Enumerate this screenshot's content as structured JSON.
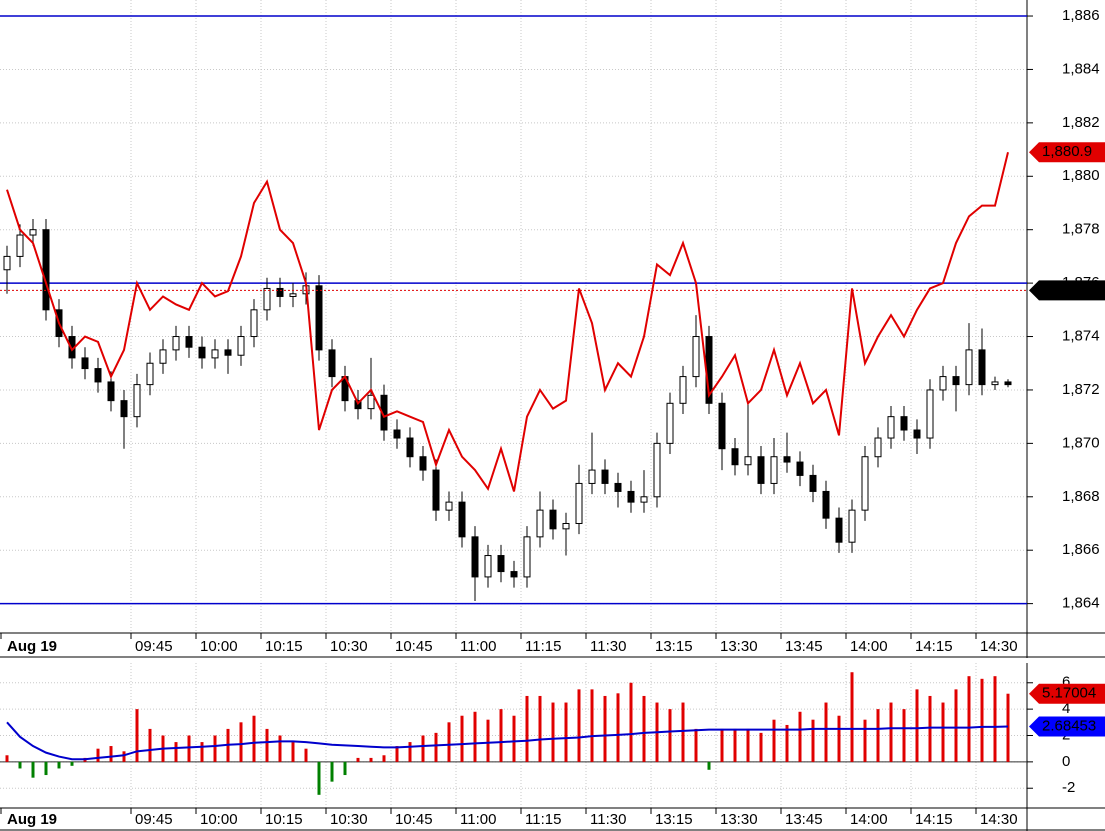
{
  "chart_data": [
    {
      "type": "candlestick",
      "open": [
        1876.5,
        1877.0,
        1877.8,
        1878.0,
        1875.0,
        1874.0,
        1873.2,
        1872.8,
        1872.3,
        1871.6,
        1871.0,
        1872.2,
        1873.0,
        1873.5,
        1874.0,
        1873.6,
        1873.2,
        1873.5,
        1873.3,
        1874.0,
        1875.0,
        1875.8,
        1875.5,
        1875.6,
        1875.9,
        1873.5,
        1872.5,
        1871.6,
        1871.3,
        1871.8,
        1870.5,
        1870.2,
        1869.5,
        1869.0,
        1867.5,
        1867.8,
        1866.5,
        1865.0,
        1865.8,
        1865.2,
        1865.0,
        1866.5,
        1867.5,
        1866.8,
        1867.0,
        1868.5,
        1869.0,
        1868.5,
        1868.2,
        1867.8,
        1868.0,
        1870.0,
        1871.5,
        1872.5,
        1874.0,
        1871.5,
        1869.8,
        1869.2,
        1869.5,
        1868.5,
        1869.5,
        1869.3,
        1868.8,
        1868.2,
        1867.2,
        1866.3,
        1867.5,
        1869.5,
        1870.2,
        1871.0,
        1870.5,
        1870.2,
        1872.0,
        1872.5,
        1872.2,
        1873.5,
        1872.2,
        1872.3
      ],
      "high": [
        1877.4,
        1878.2,
        1878.4,
        1878.4,
        1875.4,
        1874.4,
        1873.6,
        1873.2,
        1872.7,
        1872.0,
        1872.6,
        1873.4,
        1873.9,
        1874.4,
        1874.4,
        1874.0,
        1873.9,
        1873.9,
        1874.4,
        1875.4,
        1876.2,
        1876.2,
        1876.0,
        1876.4,
        1876.3,
        1873.9,
        1872.9,
        1872.0,
        1873.2,
        1872.2,
        1870.9,
        1870.6,
        1869.9,
        1869.4,
        1868.2,
        1868.2,
        1866.9,
        1866.2,
        1866.2,
        1865.6,
        1866.9,
        1868.2,
        1867.9,
        1867.4,
        1869.2,
        1870.4,
        1869.4,
        1868.9,
        1868.6,
        1869.0,
        1870.4,
        1871.9,
        1872.9,
        1874.8,
        1874.4,
        1871.9,
        1870.2,
        1871.6,
        1869.9,
        1870.2,
        1870.4,
        1869.7,
        1869.2,
        1868.6,
        1867.6,
        1867.9,
        1869.9,
        1870.6,
        1871.4,
        1871.4,
        1870.9,
        1872.4,
        1872.9,
        1872.9,
        1874.5,
        1874.3,
        1872.5,
        1872.4
      ],
      "low": [
        1875.6,
        1876.6,
        1877.4,
        1874.6,
        1873.6,
        1872.8,
        1872.4,
        1871.9,
        1871.2,
        1869.8,
        1870.6,
        1871.8,
        1872.6,
        1873.1,
        1873.2,
        1872.8,
        1872.8,
        1872.6,
        1872.9,
        1873.6,
        1874.6,
        1875.1,
        1875.1,
        1875.2,
        1873.1,
        1872.1,
        1871.2,
        1870.9,
        1870.9,
        1870.1,
        1869.8,
        1869.1,
        1868.6,
        1867.1,
        1867.1,
        1866.1,
        1864.1,
        1864.6,
        1864.8,
        1864.6,
        1864.6,
        1866.1,
        1866.4,
        1865.8,
        1866.6,
        1868.1,
        1868.1,
        1867.6,
        1867.4,
        1867.4,
        1867.6,
        1869.6,
        1871.1,
        1872.1,
        1871.1,
        1869.0,
        1868.8,
        1868.8,
        1868.1,
        1868.1,
        1868.9,
        1868.4,
        1867.8,
        1866.8,
        1865.9,
        1865.9,
        1867.1,
        1869.1,
        1869.8,
        1870.1,
        1869.6,
        1869.8,
        1871.6,
        1871.2,
        1871.8,
        1871.8,
        1872.0,
        1872.1
      ],
      "close": [
        1877.0,
        1877.8,
        1878.0,
        1875.0,
        1874.0,
        1873.2,
        1872.8,
        1872.3,
        1871.6,
        1871.0,
        1872.2,
        1873.0,
        1873.5,
        1874.0,
        1873.6,
        1873.2,
        1873.5,
        1873.3,
        1874.0,
        1875.0,
        1875.8,
        1875.5,
        1875.6,
        1875.9,
        1873.5,
        1872.5,
        1871.6,
        1871.3,
        1871.8,
        1870.5,
        1870.2,
        1869.5,
        1869.0,
        1867.5,
        1867.8,
        1866.5,
        1865.0,
        1865.8,
        1865.2,
        1865.0,
        1866.5,
        1867.5,
        1866.8,
        1867.0,
        1868.5,
        1869.0,
        1868.5,
        1868.2,
        1867.8,
        1868.0,
        1870.0,
        1871.5,
        1872.5,
        1874.0,
        1871.5,
        1869.8,
        1869.2,
        1869.5,
        1868.5,
        1869.5,
        1869.3,
        1868.8,
        1868.2,
        1867.2,
        1866.3,
        1867.5,
        1869.5,
        1870.2,
        1871.0,
        1870.5,
        1870.2,
        1872.0,
        1872.5,
        1872.2,
        1873.5,
        1872.2,
        1872.3,
        1872.2
      ],
      "series": [
        {
          "color": "#e00000",
          "values": [
            1879.5,
            1878.0,
            1877.5,
            1876.0,
            1874.5,
            1873.5,
            1874.0,
            1873.8,
            1872.5,
            1873.5,
            1876.0,
            1875.0,
            1875.5,
            1875.2,
            1875.0,
            1876.0,
            1875.5,
            1875.7,
            1877.0,
            1879.0,
            1879.8,
            1878.0,
            1877.5,
            1876.0,
            1870.5,
            1872.0,
            1872.5,
            1871.5,
            1872.0,
            1871.0,
            1871.2,
            1871.0,
            1870.8,
            1869.2,
            1870.5,
            1869.5,
            1869.0,
            1868.3,
            1869.8,
            1868.2,
            1871.0,
            1872.0,
            1871.3,
            1871.6,
            1875.8,
            1874.5,
            1872.0,
            1873.0,
            1872.5,
            1874.0,
            1876.7,
            1876.3,
            1877.5,
            1876.0,
            1871.8,
            1872.5,
            1873.3,
            1871.5,
            1872.0,
            1873.5,
            1871.8,
            1873.0,
            1871.5,
            1872.0,
            1870.3,
            1875.8,
            1873.0,
            1874.0,
            1874.8,
            1874.0,
            1875.0,
            1875.8,
            1876.0,
            1877.5,
            1878.5,
            1878.9,
            1878.9,
            1880.9
          ]
        }
      ],
      "hlines": [
        {
          "value": 1886,
          "color": "#0000cc"
        },
        {
          "value": 1876,
          "color": "#0000cc"
        },
        {
          "value": 1864,
          "color": "#0000cc"
        }
      ],
      "markers": [
        {
          "value": 1880.9,
          "label": "1,880.9",
          "color": "#e00000"
        },
        {
          "value": 1875.73,
          "label": "1,875.73",
          "color": "#000000",
          "line": "dashed"
        }
      ],
      "ylim": [
        1862.9,
        1886.6
      ],
      "yticks": [
        {
          "value": 1864,
          "label": "1,864"
        },
        {
          "value": 1866,
          "label": "1,866"
        },
        {
          "value": 1868,
          "label": "1,868"
        },
        {
          "value": 1870,
          "label": "1,870"
        },
        {
          "value": 1872,
          "label": "1,872"
        },
        {
          "value": 1874,
          "label": "1,874"
        },
        {
          "value": 1876,
          "label": "1,876"
        },
        {
          "value": 1878,
          "label": "1,878"
        },
        {
          "value": 1880,
          "label": "1,880"
        },
        {
          "value": 1882,
          "label": "1,882"
        },
        {
          "value": 1884,
          "label": "1,884"
        },
        {
          "value": 1886,
          "label": "1,886"
        }
      ],
      "xticks": [
        {
          "value": 0,
          "label": "Aug 19"
        },
        {
          "value": 10,
          "label": "09:45"
        },
        {
          "value": 15,
          "label": "10:00"
        },
        {
          "value": 20,
          "label": "10:15"
        },
        {
          "value": 25,
          "label": "10:30"
        },
        {
          "value": 30,
          "label": "10:45"
        },
        {
          "value": 35,
          "label": "11:00"
        },
        {
          "value": 40,
          "label": "11:15"
        },
        {
          "value": 45,
          "label": "11:30"
        },
        {
          "value": 50,
          "label": "13:15"
        },
        {
          "value": 55,
          "label": "13:30"
        },
        {
          "value": 60,
          "label": "13:45"
        },
        {
          "value": 65,
          "label": "14:00"
        },
        {
          "value": 70,
          "label": "14:15"
        },
        {
          "value": 75,
          "label": "14:30"
        }
      ],
      "grid": true
    },
    {
      "type": "bar",
      "values": [
        0.5,
        -0.5,
        -1.2,
        -1.0,
        -0.5,
        -0.3,
        0.3,
        1.0,
        1.2,
        0.8,
        4.0,
        2.5,
        2.0,
        1.5,
        2.0,
        1.5,
        2.0,
        2.5,
        3.0,
        3.5,
        2.5,
        2.0,
        1.5,
        1.0,
        -2.5,
        -1.5,
        -1.0,
        0.3,
        0.3,
        0.5,
        1.2,
        1.5,
        2.0,
        2.2,
        3.0,
        3.5,
        3.8,
        3.2,
        4.0,
        3.5,
        5.0,
        5.0,
        4.5,
        4.5,
        5.5,
        5.5,
        5.0,
        5.2,
        6.0,
        5.0,
        4.5,
        4.0,
        4.5,
        2.5,
        -0.6,
        2.5,
        2.5,
        2.5,
        2.2,
        3.2,
        2.8,
        3.8,
        3.2,
        4.5,
        3.5,
        6.8,
        3.2,
        4.0,
        4.5,
        4.0,
        5.5,
        5.0,
        4.5,
        5.5,
        6.5,
        6.3,
        6.5,
        5.17004
      ],
      "pos_color": "#e00000",
      "neg_color": "#008000",
      "series": [
        {
          "color": "#0000cc",
          "values": [
            3.0,
            1.9,
            1.2,
            0.7,
            0.4,
            0.2,
            0.2,
            0.3,
            0.4,
            0.5,
            0.8,
            0.9,
            1.0,
            1.05,
            1.1,
            1.15,
            1.2,
            1.3,
            1.35,
            1.45,
            1.5,
            1.55,
            1.55,
            1.5,
            1.4,
            1.3,
            1.25,
            1.2,
            1.15,
            1.1,
            1.1,
            1.15,
            1.2,
            1.25,
            1.3,
            1.35,
            1.4,
            1.45,
            1.5,
            1.55,
            1.6,
            1.7,
            1.75,
            1.8,
            1.85,
            1.95,
            2.0,
            2.05,
            2.1,
            2.2,
            2.25,
            2.3,
            2.35,
            2.4,
            2.45,
            2.45,
            2.45,
            2.45,
            2.45,
            2.45,
            2.45,
            2.45,
            2.5,
            2.5,
            2.5,
            2.5,
            2.5,
            2.5,
            2.55,
            2.55,
            2.55,
            2.6,
            2.6,
            2.6,
            2.6,
            2.65,
            2.65,
            2.68453
          ]
        }
      ],
      "markers": [
        {
          "value": 5.17004,
          "label": "5.17004",
          "color": "#e00000"
        },
        {
          "value": 2.68453,
          "label": "2.68453",
          "color": "#0000ff"
        }
      ],
      "ylim": [
        -3.5,
        7.5
      ],
      "yticks": [
        -2,
        0,
        2,
        4,
        6
      ],
      "xticks": [
        {
          "value": 0,
          "label": "Aug 19"
        },
        {
          "value": 10,
          "label": "09:45"
        },
        {
          "value": 15,
          "label": "10:00"
        },
        {
          "value": 20,
          "label": "10:15"
        },
        {
          "value": 25,
          "label": "10:30"
        },
        {
          "value": 30,
          "label": "10:45"
        },
        {
          "value": 35,
          "label": "11:00"
        },
        {
          "value": 40,
          "label": "11:15"
        },
        {
          "value": 45,
          "label": "11:30"
        },
        {
          "value": 50,
          "label": "13:15"
        },
        {
          "value": 55,
          "label": "13:30"
        },
        {
          "value": 60,
          "label": "13:45"
        },
        {
          "value": 65,
          "label": "14:00"
        },
        {
          "value": 70,
          "label": "14:15"
        },
        {
          "value": 75,
          "label": "14:30"
        }
      ],
      "grid": true
    }
  ]
}
